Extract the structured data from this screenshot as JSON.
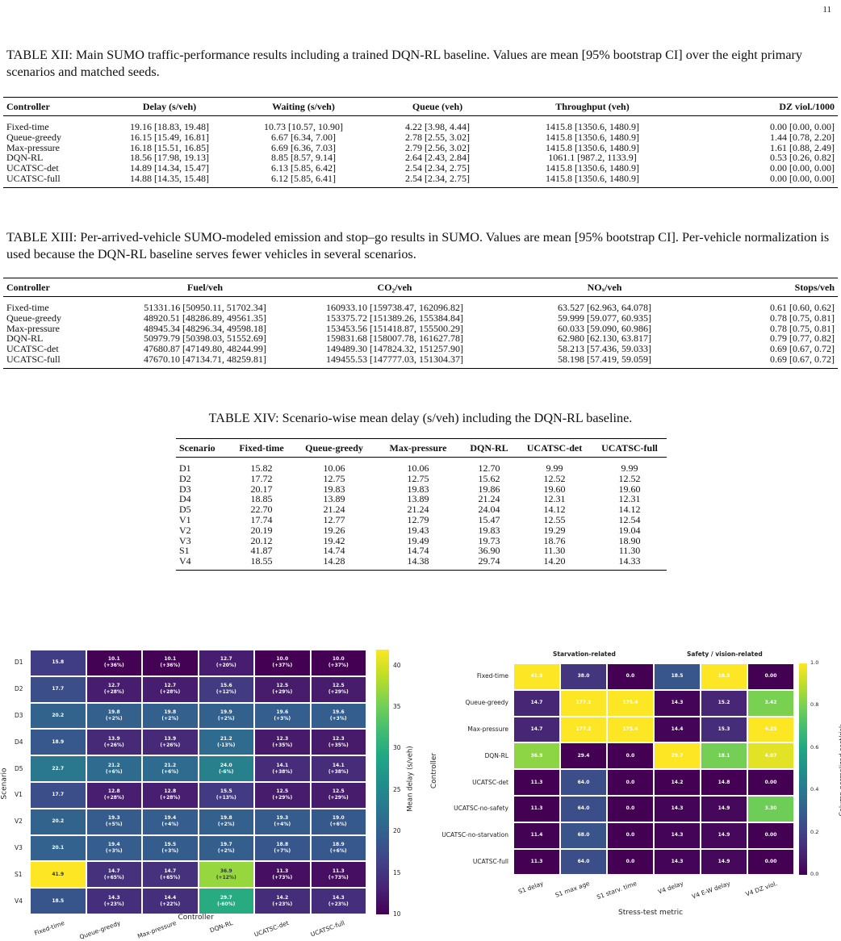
{
  "page_number": "11",
  "table12": {
    "caption": "TABLE XII: Main SUMO traffic-performance results including a trained DQN-RL baseline. Values are mean [95% bootstrap CI] over the eight primary scenarios and matched seeds.",
    "headers": [
      "Controller",
      "Delay (s/veh)",
      "Waiting (s/veh)",
      "Queue (veh)",
      "Throughput (veh)",
      "DZ viol./1000"
    ],
    "rows": [
      [
        "Fixed-time",
        "19.16 [18.83, 19.48]",
        "10.73 [10.57, 10.90]",
        "4.22 [3.98, 4.44]",
        "1415.8 [1350.6, 1480.9]",
        "0.00 [0.00, 0.00]"
      ],
      [
        "Queue-greedy",
        "16.15 [15.49, 16.81]",
        "6.67 [6.34, 7.00]",
        "2.78 [2.55, 3.02]",
        "1415.8 [1350.6, 1480.9]",
        "1.44 [0.78, 2.20]"
      ],
      [
        "Max-pressure",
        "16.18 [15.51, 16.85]",
        "6.69 [6.36, 7.03]",
        "2.79 [2.56, 3.02]",
        "1415.8 [1350.6, 1480.9]",
        "1.61 [0.88, 2.49]"
      ],
      [
        "DQN-RL",
        "18.56 [17.98, 19.13]",
        "8.85 [8.57, 9.14]",
        "2.64 [2.43, 2.84]",
        "1061.1 [987.2, 1133.9]",
        "0.53 [0.26, 0.82]"
      ],
      [
        "UCATSC-det",
        "14.89 [14.34, 15.47]",
        "6.13 [5.85, 6.42]",
        "2.54 [2.34, 2.75]",
        "1415.8 [1350.6, 1480.9]",
        "0.00 [0.00, 0.00]"
      ],
      [
        "UCATSC-full",
        "14.88 [14.35, 15.48]",
        "6.12 [5.85, 6.41]",
        "2.54 [2.34, 2.75]",
        "1415.8 [1350.6, 1480.9]",
        "0.00 [0.00, 0.00]"
      ]
    ]
  },
  "table13": {
    "caption": "TABLE XIII: Per-arrived-vehicle SUMO-modeled emission and stop–go results in SUMO. Values are mean [95% bootstrap CI]. Per-vehicle normalization is used because the DQN-RL baseline serves fewer vehicles in several scenarios.",
    "headers": [
      "Controller",
      "Fuel/veh",
      "CO₂/veh",
      "NOₓ/veh",
      "Stops/veh"
    ],
    "rows": [
      [
        "Fixed-time",
        "51331.16 [50950.11, 51702.34]",
        "160933.10 [159738.47, 162096.82]",
        "63.527 [62.963, 64.078]",
        "0.61 [0.60, 0.62]"
      ],
      [
        "Queue-greedy",
        "48920.51 [48286.89, 49561.35]",
        "153375.72 [151389.26, 155384.84]",
        "59.999 [59.077, 60.935]",
        "0.78 [0.75, 0.81]"
      ],
      [
        "Max-pressure",
        "48945.34 [48296.34, 49598.18]",
        "153453.56 [151418.87, 155500.29]",
        "60.033 [59.090, 60.986]",
        "0.78 [0.75, 0.81]"
      ],
      [
        "DQN-RL",
        "50979.79 [50398.03, 51552.69]",
        "159831.68 [158007.78, 161627.78]",
        "62.980 [62.130, 63.817]",
        "0.79 [0.77, 0.82]"
      ],
      [
        "UCATSC-det",
        "47680.87 [47149.80, 48244.99]",
        "149489.30 [147824.32, 151257.90]",
        "58.213 [57.436, 59.033]",
        "0.69 [0.67, 0.72]"
      ],
      [
        "UCATSC-full",
        "47670.10 [47134.71, 48259.81]",
        "149455.53 [147777.03, 151304.37]",
        "58.198 [57.419, 59.059]",
        "0.69 [0.67, 0.72]"
      ]
    ]
  },
  "table14": {
    "caption": "TABLE XIV: Scenario-wise mean delay (s/veh) including the DQN-RL baseline.",
    "headers": [
      "Scenario",
      "Fixed-time",
      "Queue-greedy",
      "Max-pressure",
      "DQN-RL",
      "UCATSC-det",
      "UCATSC-full"
    ],
    "rows": [
      [
        "D1",
        "15.82",
        "10.06",
        "10.06",
        "12.70",
        "9.99",
        "9.99"
      ],
      [
        "D2",
        "17.72",
        "12.75",
        "12.75",
        "15.62",
        "12.52",
        "12.52"
      ],
      [
        "D3",
        "20.17",
        "19.83",
        "19.83",
        "19.86",
        "19.60",
        "19.60"
      ],
      [
        "D4",
        "18.85",
        "13.89",
        "13.89",
        "21.24",
        "12.31",
        "12.31"
      ],
      [
        "D5",
        "22.70",
        "21.24",
        "21.24",
        "24.04",
        "14.12",
        "14.12"
      ],
      [
        "V1",
        "17.74",
        "12.77",
        "12.79",
        "15.47",
        "12.55",
        "12.54"
      ],
      [
        "V2",
        "20.19",
        "19.26",
        "19.43",
        "19.83",
        "19.29",
        "19.04"
      ],
      [
        "V3",
        "20.12",
        "19.42",
        "19.49",
        "19.73",
        "18.76",
        "18.90"
      ],
      [
        "S1",
        "41.87",
        "14.74",
        "14.74",
        "36.90",
        "11.30",
        "11.30"
      ],
      [
        "V4",
        "18.55",
        "14.28",
        "14.38",
        "29.74",
        "14.20",
        "14.33"
      ]
    ]
  },
  "chart_data": [
    {
      "type": "heatmap",
      "xlabel": "Controller",
      "ylabel": "Scenario",
      "colorbar_label": "Mean delay (s/veh)",
      "colorbar_ticks": [
        "10",
        "15",
        "20",
        "25",
        "30",
        "35",
        "40"
      ],
      "colorbar_range": [
        10,
        41.9
      ],
      "colormap": "viridis",
      "x": [
        "Fixed-time",
        "Queue-greedy",
        "Max-pressure",
        "DQN-RL",
        "UCATSC-det",
        "UCATSC-full"
      ],
      "y": [
        "D1",
        "D2",
        "D3",
        "D4",
        "D5",
        "V1",
        "V2",
        "V3",
        "S1",
        "V4"
      ],
      "values": [
        [
          15.8,
          10.1,
          10.1,
          12.7,
          10.0,
          10.0
        ],
        [
          17.7,
          12.7,
          12.7,
          15.6,
          12.5,
          12.5
        ],
        [
          20.2,
          19.8,
          19.8,
          19.9,
          19.6,
          19.6
        ],
        [
          18.9,
          13.9,
          13.9,
          21.2,
          12.3,
          12.3
        ],
        [
          22.7,
          21.2,
          21.2,
          24.0,
          14.1,
          14.1
        ],
        [
          17.7,
          12.8,
          12.8,
          15.5,
          12.5,
          12.5
        ],
        [
          20.2,
          19.3,
          19.4,
          19.8,
          19.3,
          19.0
        ],
        [
          20.1,
          19.4,
          19.5,
          19.7,
          18.8,
          18.9
        ],
        [
          41.9,
          14.7,
          14.7,
          36.9,
          11.3,
          11.3
        ],
        [
          18.5,
          14.3,
          14.4,
          29.7,
          14.2,
          14.3
        ]
      ],
      "deltas": [
        [
          "",
          "(+36%)",
          "(+36%)",
          "(+20%)",
          "(+37%)",
          "(+37%)"
        ],
        [
          "",
          "(+28%)",
          "(+28%)",
          "(+12%)",
          "(+29%)",
          "(+29%)"
        ],
        [
          "",
          "(+2%)",
          "(+2%)",
          "(+2%)",
          "(+3%)",
          "(+3%)"
        ],
        [
          "",
          "(+26%)",
          "(+26%)",
          "(-13%)",
          "(+35%)",
          "(+35%)"
        ],
        [
          "",
          "(+6%)",
          "(+6%)",
          "(-6%)",
          "(+38%)",
          "(+38%)"
        ],
        [
          "",
          "(+28%)",
          "(+28%)",
          "(+13%)",
          "(+29%)",
          "(+29%)"
        ],
        [
          "",
          "(+5%)",
          "(+4%)",
          "(+2%)",
          "(+4%)",
          "(+6%)"
        ],
        [
          "",
          "(+3%)",
          "(+3%)",
          "(+2%)",
          "(+7%)",
          "(+6%)"
        ],
        [
          "",
          "(+65%)",
          "(+65%)",
          "(+12%)",
          "(+73%)",
          "(+73%)"
        ],
        [
          "",
          "(+23%)",
          "(+22%)",
          "(-60%)",
          "(+23%)",
          "(+23%)"
        ]
      ]
    },
    {
      "type": "heatmap",
      "xlabel": "Stress-test metric",
      "ylabel": "Controller",
      "colorbar_label": "Column-normalized cost/risk",
      "colorbar_ticks": [
        "0.0",
        "0.2",
        "0.4",
        "0.6",
        "0.8",
        "1.0"
      ],
      "colorbar_range": [
        0,
        1
      ],
      "colormap": "viridis",
      "groups": [
        "Starvation-related",
        "Safety / vision-related"
      ],
      "x": [
        "S1 delay",
        "S1 max age",
        "S1 starv. time",
        "V4 delay",
        "V4 E-W delay",
        "V4 DZ viol."
      ],
      "y": [
        "Fixed-time",
        "Queue-greedy",
        "Max-pressure",
        "DQN-RL",
        "UCATSC-det",
        "UCATSC-no-safety",
        "UCATSC-no-starvation",
        "UCATSC-full"
      ],
      "labels": [
        [
          "41.9",
          "38.0",
          "0.0",
          "18.5",
          "18.5",
          "0.00"
        ],
        [
          "14.7",
          "177.2",
          "175.4",
          "14.3",
          "15.2",
          "3.42"
        ],
        [
          "14.7",
          "177.2",
          "175.4",
          "14.4",
          "15.3",
          "4.25"
        ],
        [
          "36.9",
          "29.4",
          "0.0",
          "29.7",
          "18.1",
          "4.07"
        ],
        [
          "11.3",
          "64.0",
          "0.0",
          "14.2",
          "14.8",
          "0.00"
        ],
        [
          "11.3",
          "64.0",
          "0.0",
          "14.3",
          "14.9",
          "3.30"
        ],
        [
          "11.4",
          "68.0",
          "0.0",
          "14.3",
          "14.9",
          "0.00"
        ],
        [
          "11.3",
          "64.0",
          "0.0",
          "14.3",
          "14.9",
          "0.00"
        ]
      ],
      "normalized": [
        [
          1.0,
          0.16,
          0.0,
          0.27,
          1.0,
          0.0
        ],
        [
          0.11,
          1.0,
          1.0,
          0.01,
          0.11,
          0.8
        ],
        [
          0.11,
          1.0,
          1.0,
          0.01,
          0.13,
          1.0
        ],
        [
          0.83,
          0.0,
          0.0,
          1.0,
          0.79,
          0.96
        ],
        [
          0.0,
          0.24,
          0.0,
          0.0,
          0.0,
          0.0
        ],
        [
          0.0,
          0.24,
          0.0,
          0.01,
          0.02,
          0.78
        ],
        [
          0.003,
          0.26,
          0.0,
          0.01,
          0.02,
          0.0
        ],
        [
          0.0,
          0.24,
          0.0,
          0.01,
          0.02,
          0.0
        ]
      ]
    }
  ]
}
